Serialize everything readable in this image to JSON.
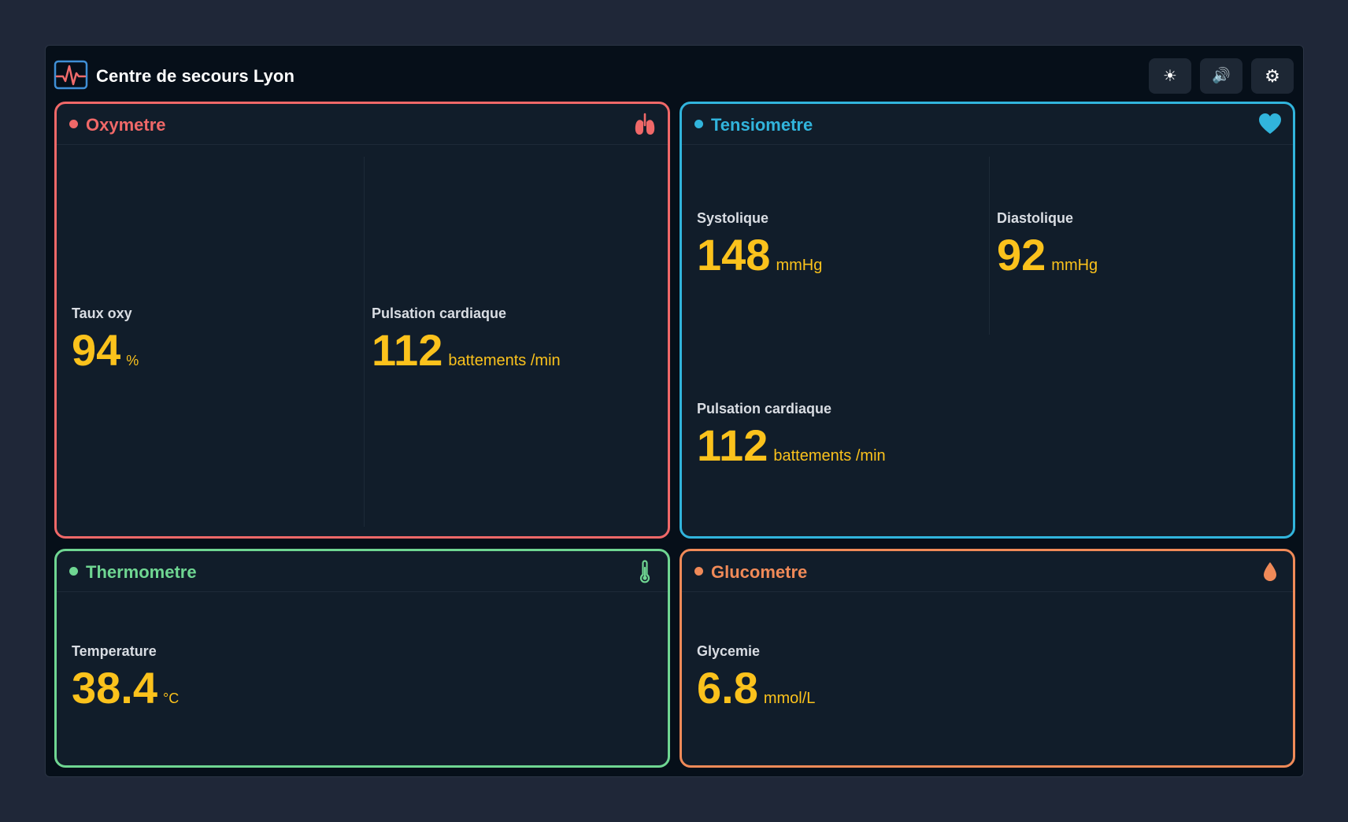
{
  "app": {
    "title": "Centre de secours Lyon",
    "logo_icon": "heart-monitor-icon",
    "toolbar": [
      {
        "icon": "sun-icon",
        "glyph": "☀"
      },
      {
        "icon": "speaker-icon",
        "glyph": "🔊"
      },
      {
        "icon": "gear-icon",
        "glyph": "⚙"
      }
    ]
  },
  "colors": {
    "oxymetre": "#f06868",
    "tensiometre": "#31b4dc",
    "thermometre": "#6fd692",
    "glucometre": "#f08a58",
    "value": "#fbc21c"
  },
  "devices": {
    "oxymetre": {
      "title": "Oxymetre",
      "icon": "lungs-icon",
      "metrics": [
        {
          "label": "Taux oxy",
          "value": "94",
          "unit": "%"
        },
        {
          "label": "Pulsation cardiaque",
          "value": "112",
          "unit": "battements /min"
        }
      ]
    },
    "tensiometre": {
      "title": "Tensiometre",
      "icon": "heart-icon",
      "metrics": [
        {
          "label": "Systolique",
          "value": "148",
          "unit": "mmHg"
        },
        {
          "label": "Diastolique",
          "value": "92",
          "unit": "mmHg"
        },
        {
          "label": "Pulsation cardiaque",
          "value": "112",
          "unit": "battements /min"
        }
      ]
    },
    "thermometre": {
      "title": "Thermometre",
      "icon": "thermometer-icon",
      "metrics": [
        {
          "label": "Temperature",
          "value": "38.4",
          "unit": "°C"
        }
      ]
    },
    "glucometre": {
      "title": "Glucometre",
      "icon": "droplet-icon",
      "metrics": [
        {
          "label": "Glycemie",
          "value": "6.8",
          "unit": "mmol/L"
        }
      ]
    }
  }
}
